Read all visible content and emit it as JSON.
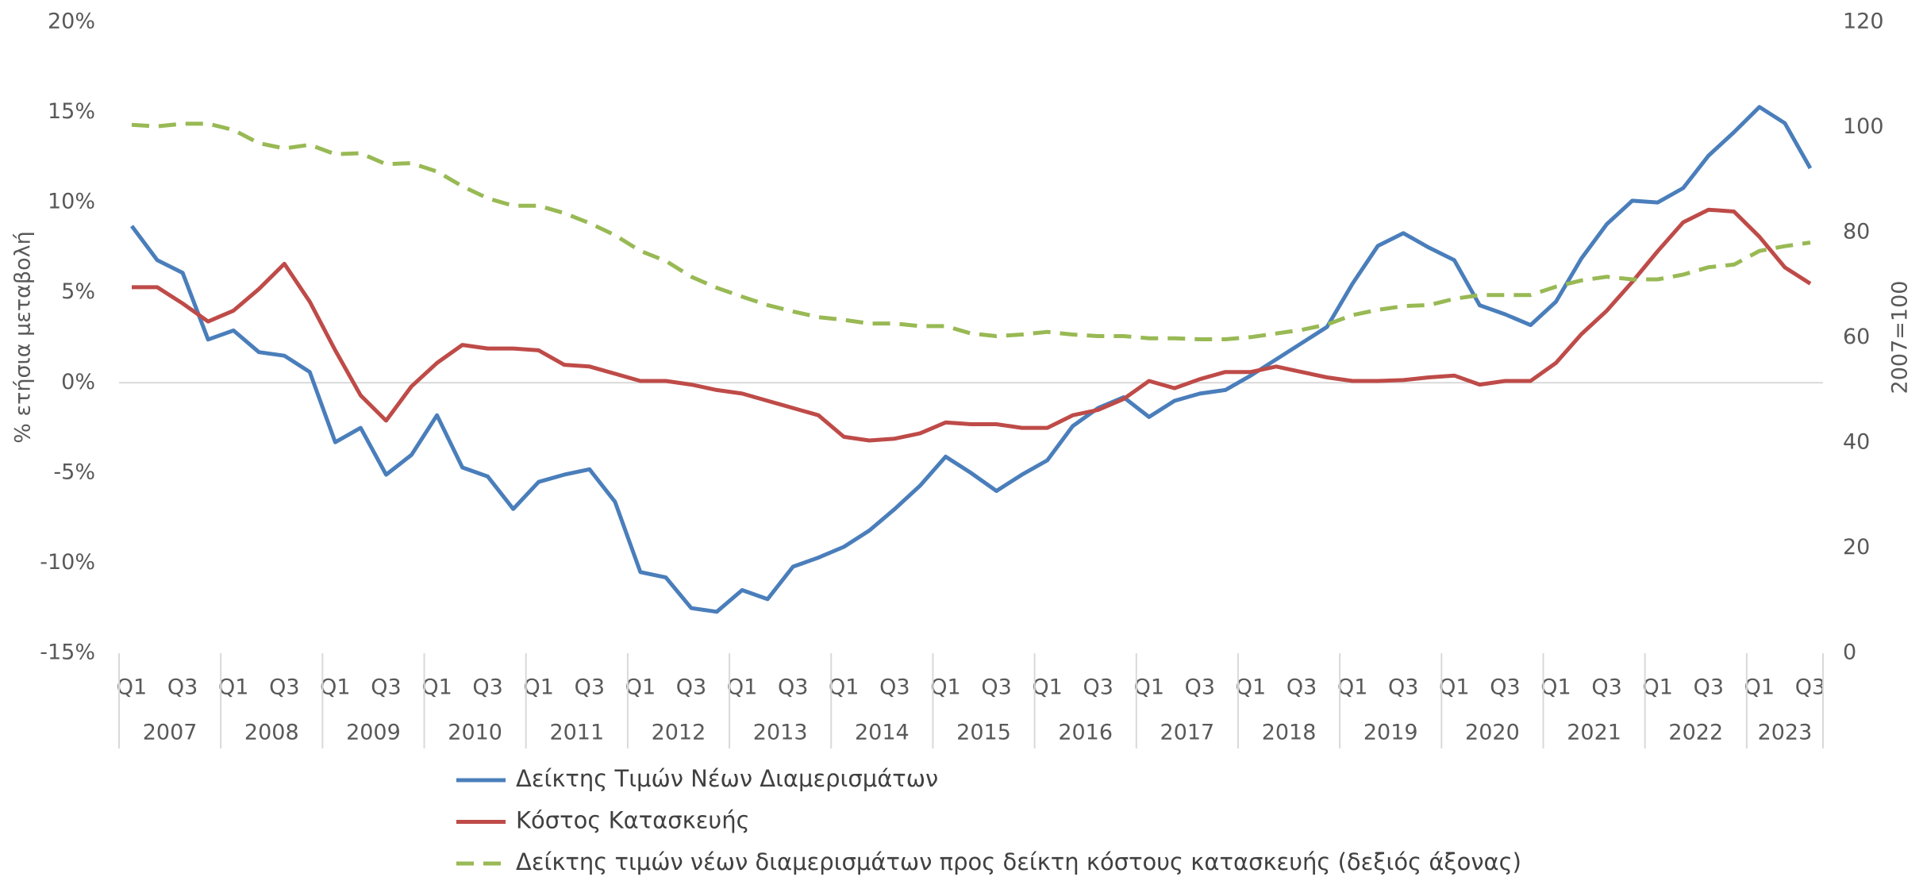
{
  "chart_data": {
    "type": "line",
    "y_label": "% ετήσια μεταβολή",
    "y2_label": "2007=100",
    "categories": [
      "Q1",
      null,
      "Q3",
      null,
      "Q1",
      null,
      "Q3",
      null,
      "Q1",
      null,
      "Q3",
      null,
      "Q1",
      null,
      "Q3",
      null,
      "Q1",
      null,
      "Q3",
      null,
      "Q1",
      null,
      "Q3",
      null,
      "Q1",
      null,
      "Q3",
      null,
      "Q1",
      null,
      "Q3",
      null,
      "Q1",
      null,
      "Q3",
      null,
      "Q1",
      null,
      "Q3",
      null,
      "Q1",
      null,
      "Q3",
      null,
      "Q1",
      null,
      "Q3",
      null,
      "Q1",
      null,
      "Q3",
      null,
      "Q1",
      null,
      "Q3",
      null,
      "Q1",
      null,
      "Q3",
      null,
      "Q1",
      null,
      "Q3",
      null,
      "Q1",
      null,
      "Q3"
    ],
    "category_groups": [
      "2007",
      "2008",
      "2009",
      "2010",
      "2011",
      "2012",
      "2013",
      "2014",
      "2015",
      "2016",
      "2017",
      "2018",
      "2019",
      "2020",
      "2021",
      "2022",
      "2023"
    ],
    "series": [
      {
        "name": "Δείκτης Τιμών Νέων Διαμερισμάτων",
        "color": "#4a7ebb",
        "line_style": "solid",
        "values": [
          8.7,
          6.8,
          6.1,
          2.4,
          2.9,
          1.7,
          1.5,
          0.6,
          -3.3,
          -2.5,
          -5.1,
          -4.0,
          -1.8,
          -4.7,
          -5.2,
          -7.0,
          -5.5,
          -5.1,
          -4.8,
          -6.6,
          -10.5,
          -10.8,
          -12.5,
          -12.7,
          -11.5,
          -12.0,
          -10.2,
          -9.7,
          -9.1,
          -8.2,
          -7.0,
          -5.7,
          -4.1,
          -5.0,
          -6.0,
          -5.1,
          -4.3,
          -2.4,
          -1.4,
          -0.8,
          -1.9,
          -1.0,
          -0.6,
          -0.4,
          0.4,
          1.3,
          2.2,
          3.1,
          5.5,
          7.6,
          8.3,
          7.5,
          6.8,
          4.3,
          3.8,
          3.2,
          4.5,
          6.9,
          8.8,
          10.1,
          10.0,
          10.8,
          12.6,
          13.9,
          15.3,
          14.4,
          11.9
        ]
      },
      {
        "name": "Κόστος Κατασκευής",
        "color": "#be4b48",
        "line_style": "solid",
        "values": [
          5.3,
          5.3,
          4.4,
          3.4,
          4.0,
          5.2,
          6.6,
          4.5,
          1.8,
          -0.7,
          -2.1,
          -0.2,
          1.1,
          2.1,
          1.9,
          1.9,
          1.8,
          1.0,
          0.9,
          0.5,
          0.1,
          0.1,
          -0.1,
          -0.4,
          -0.6,
          -1.0,
          -1.4,
          -1.8,
          -3.0,
          -3.2,
          -3.1,
          -2.8,
          -2.2,
          -2.3,
          -2.3,
          -2.5,
          -2.5,
          -1.8,
          -1.5,
          -0.9,
          0.1,
          -0.3,
          0.2,
          0.6,
          0.6,
          0.9,
          0.6,
          0.3,
          0.1,
          0.1,
          0.15,
          0.3,
          0.4,
          -0.1,
          0.1,
          0.1,
          1.1,
          2.7,
          4.0,
          5.6,
          7.3,
          8.9,
          9.6,
          9.5,
          8.1,
          6.4,
          5.5
        ]
      },
      {
        "name": "Δείκτης τιμών νέων διαμερισμάτων προς δείκτη κόστους κατασκευής (δεξιός άξονας)",
        "color": "#98b954",
        "line_style": "dashed",
        "axis": "y2",
        "values": [
          100.5,
          100.2,
          100.7,
          100.7,
          99.5,
          97,
          96,
          96.7,
          94.9,
          95.1,
          93,
          93.2,
          91.6,
          88.8,
          86.5,
          85.1,
          85.1,
          83.7,
          81.8,
          79.5,
          76.5,
          74.6,
          71.6,
          69.5,
          67.8,
          66.2,
          65.0,
          63.9,
          63.4,
          62.7,
          62.7,
          62.2,
          62.2,
          60.8,
          60.3,
          60.6,
          61.1,
          60.6,
          60.3,
          60.3,
          59.9,
          59.9,
          59.7,
          59.7,
          60.1,
          60.8,
          61.5,
          62.5,
          64.3,
          65.3,
          66,
          66.2,
          67.4,
          68.1,
          68.1,
          68.1,
          69.7,
          70.9,
          71.6,
          71.1,
          71.1,
          72,
          73.4,
          73.9,
          76.5,
          77.4,
          78.1
        ]
      }
    ],
    "ylim": [
      -15,
      20
    ],
    "yticks": [
      {
        "value": -15,
        "label": "-15%"
      },
      {
        "value": -10,
        "label": "-10%"
      },
      {
        "value": -5,
        "label": "-5%"
      },
      {
        "value": 0,
        "label": "0%"
      },
      {
        "value": 5,
        "label": "5%"
      },
      {
        "value": 10,
        "label": "10%"
      },
      {
        "value": 15,
        "label": "15%"
      },
      {
        "value": 20,
        "label": "20%"
      }
    ],
    "y2lim": [
      0,
      120
    ],
    "y2ticks": [
      0,
      20,
      40,
      60,
      80,
      100,
      120
    ],
    "zero_line": true,
    "grid": false,
    "legend": "bottom"
  }
}
